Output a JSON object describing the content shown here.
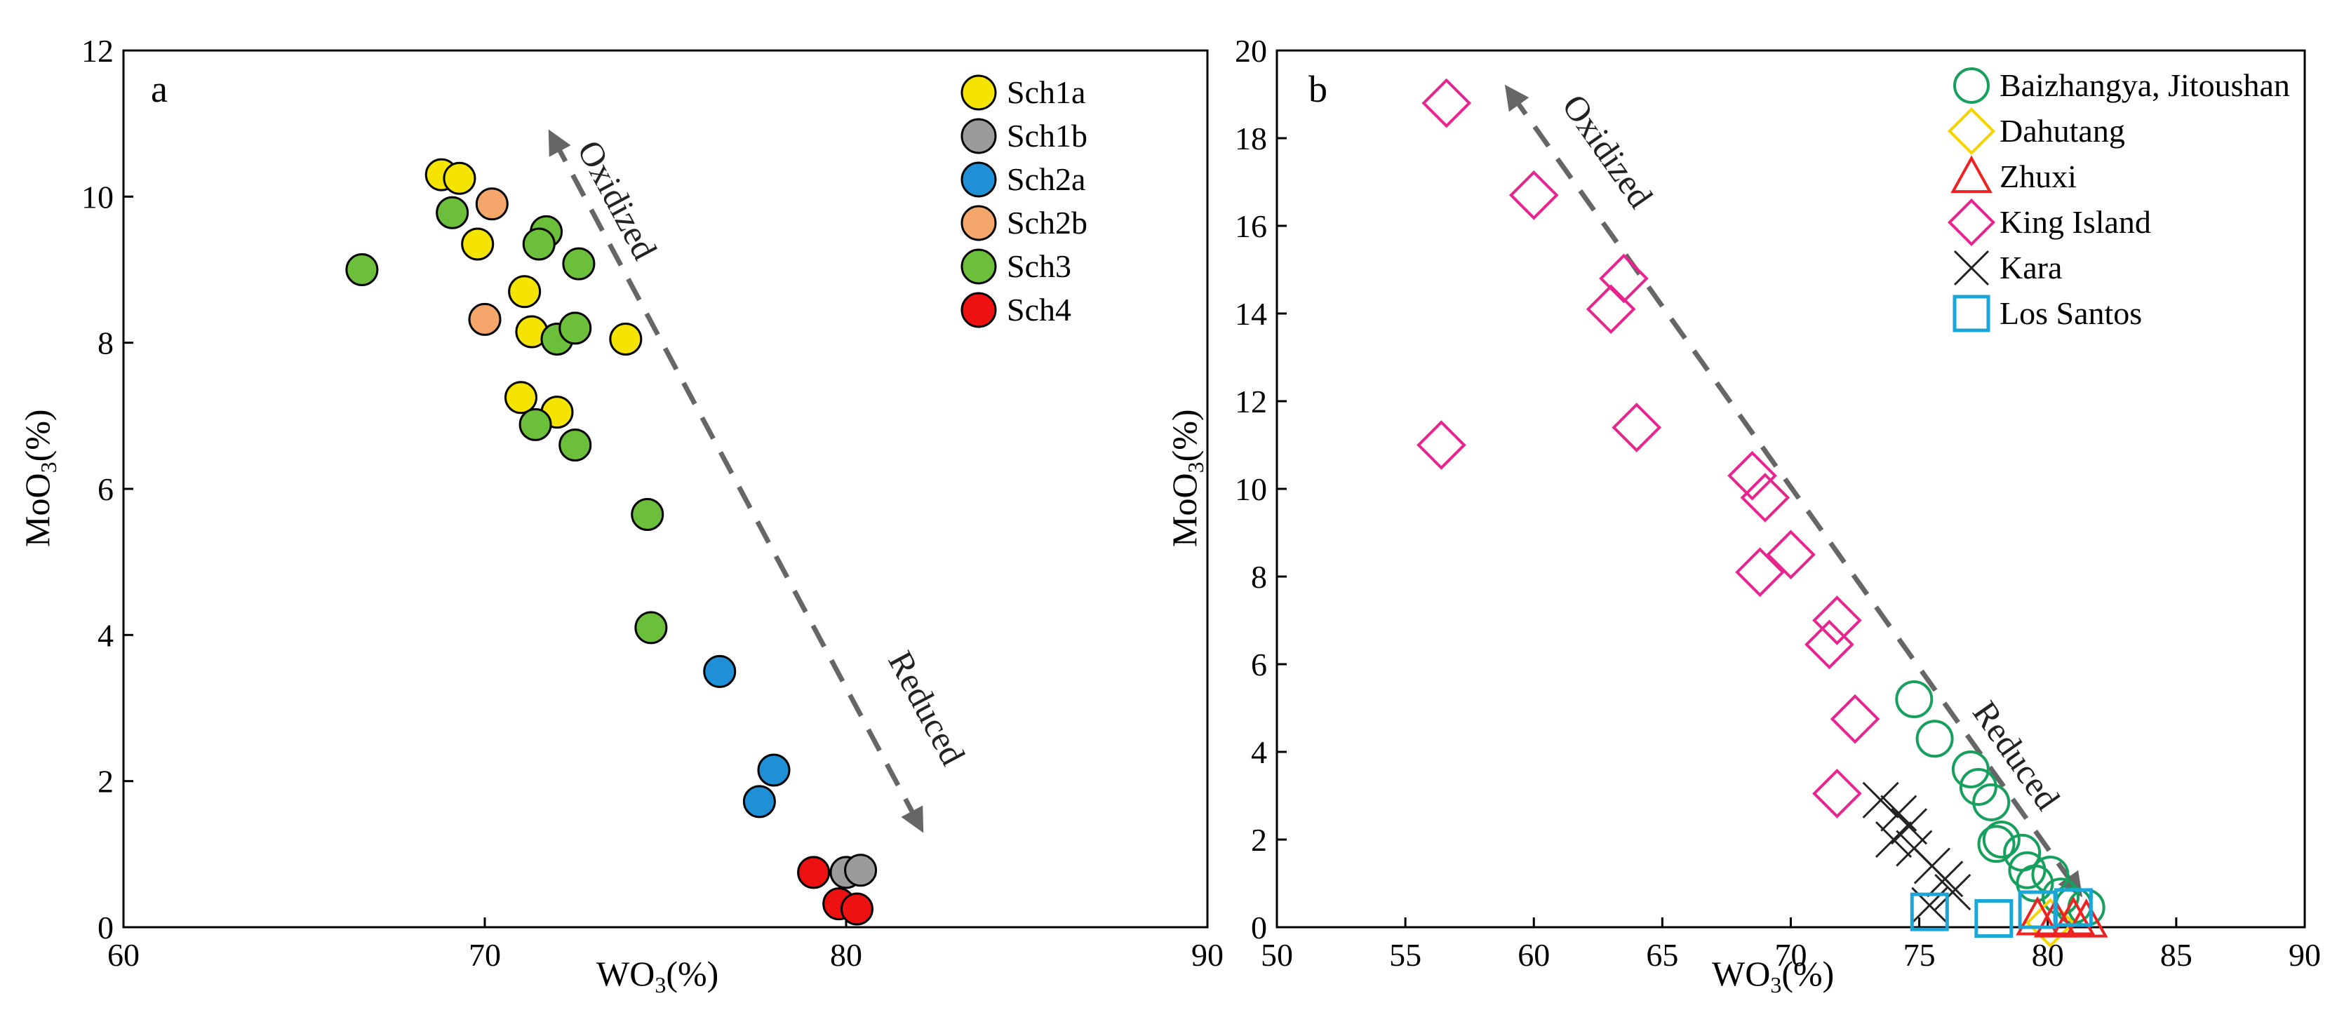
{
  "chart_data": [
    {
      "type": "scatter",
      "panel_label": "a",
      "xlabel": "WO3(%)",
      "ylabel": "MoO3(%)",
      "xlim": [
        60,
        90
      ],
      "ylim": [
        0,
        12
      ],
      "xticks": [
        "60",
        "70",
        "80",
        "90"
      ],
      "yticks": [
        "0",
        "2",
        "4",
        "6",
        "8",
        "10",
        "12"
      ],
      "legend_position": "top-right",
      "annotations": {
        "upper": "Oxidized",
        "lower": "Reduced"
      },
      "series": [
        {
          "name": "Sch1a",
          "marker": "circle",
          "fill": "#f5e400",
          "stroke": "#000000",
          "points": [
            [
              68.8,
              10.3
            ],
            [
              69.3,
              10.25
            ],
            [
              69.8,
              9.35
            ],
            [
              71.1,
              8.7
            ],
            [
              71.3,
              8.15
            ],
            [
              71.0,
              7.25
            ],
            [
              72.0,
              7.05
            ],
            [
              73.9,
              8.05
            ]
          ]
        },
        {
          "name": "Sch1b",
          "marker": "circle",
          "fill": "#9b9b9b",
          "stroke": "#000000",
          "points": [
            [
              80.0,
              0.75
            ],
            [
              80.4,
              0.78
            ]
          ]
        },
        {
          "name": "Sch2a",
          "marker": "circle",
          "fill": "#1f8fd6",
          "stroke": "#000000",
          "points": [
            [
              76.5,
              3.5
            ],
            [
              78.0,
              2.15
            ],
            [
              77.6,
              1.72
            ]
          ]
        },
        {
          "name": "Sch2b",
          "marker": "circle",
          "fill": "#f4a66b",
          "stroke": "#000000",
          "points": [
            [
              70.2,
              9.9
            ],
            [
              70.0,
              8.32
            ]
          ]
        },
        {
          "name": "Sch3",
          "marker": "circle",
          "fill": "#6bbf3b",
          "stroke": "#000000",
          "points": [
            [
              66.6,
              9.0
            ],
            [
              69.1,
              9.78
            ],
            [
              71.7,
              9.52
            ],
            [
              71.5,
              9.35
            ],
            [
              72.6,
              9.08
            ],
            [
              72.0,
              8.05
            ],
            [
              72.5,
              8.2
            ],
            [
              71.4,
              6.88
            ],
            [
              72.5,
              6.6
            ],
            [
              74.5,
              5.65
            ],
            [
              74.6,
              4.1
            ]
          ]
        },
        {
          "name": "Sch4",
          "marker": "circle",
          "fill": "#ee1111",
          "stroke": "#000000",
          "points": [
            [
              79.1,
              0.75
            ],
            [
              79.8,
              0.32
            ],
            [
              80.3,
              0.25
            ]
          ]
        }
      ]
    },
    {
      "type": "scatter",
      "panel_label": "b",
      "xlabel": "WO3(%)",
      "ylabel": "MoO3(%)",
      "xlim": [
        50,
        90
      ],
      "ylim": [
        0,
        20
      ],
      "xticks": [
        "50",
        "55",
        "60",
        "65",
        "70",
        "75",
        "80",
        "85",
        "90"
      ],
      "yticks": [
        "0",
        "2",
        "4",
        "6",
        "8",
        "10",
        "12",
        "14",
        "16",
        "18",
        "20"
      ],
      "legend_position": "top-right",
      "annotations": {
        "upper": "Oxidized",
        "lower": "Reduced"
      },
      "series": [
        {
          "name": "Baizhangya, Jitoushan",
          "marker": "circle-open",
          "stroke": "#17a05d",
          "points": [
            [
              74.8,
              5.2
            ],
            [
              75.6,
              4.3
            ],
            [
              77.0,
              3.6
            ],
            [
              77.3,
              3.2
            ],
            [
              77.8,
              2.85
            ],
            [
              78.2,
              2.0
            ],
            [
              78.0,
              1.9
            ],
            [
              79.0,
              1.7
            ],
            [
              79.2,
              1.3
            ],
            [
              79.5,
              1.0
            ],
            [
              80.1,
              1.2
            ],
            [
              80.5,
              0.7
            ],
            [
              81.0,
              0.5
            ],
            [
              81.5,
              0.45
            ]
          ]
        },
        {
          "name": "Dahutang",
          "marker": "diamond-open",
          "stroke": "#f5d400",
          "points": [
            [
              80.1,
              0.1
            ]
          ]
        },
        {
          "name": "Zhuxi",
          "marker": "triangle-open",
          "stroke": "#ee2222",
          "points": [
            [
              79.6,
              0.2
            ],
            [
              80.3,
              0.15
            ],
            [
              81.0,
              0.2
            ],
            [
              81.5,
              0.15
            ]
          ]
        },
        {
          "name": "King Island",
          "marker": "diamond-open",
          "stroke": "#e8248f",
          "points": [
            [
              56.6,
              18.8
            ],
            [
              60.0,
              16.7
            ],
            [
              63.5,
              14.8
            ],
            [
              63.0,
              14.1
            ],
            [
              56.4,
              11.0
            ],
            [
              64.0,
              11.4
            ],
            [
              68.5,
              10.3
            ],
            [
              69.0,
              9.8
            ],
            [
              68.8,
              8.1
            ],
            [
              70.0,
              8.5
            ],
            [
              71.8,
              7.0
            ],
            [
              71.5,
              6.45
            ],
            [
              72.5,
              4.75
            ],
            [
              71.8,
              3.05
            ]
          ]
        },
        {
          "name": "Kara",
          "marker": "x",
          "stroke": "#222222",
          "points": [
            [
              73.5,
              2.9
            ],
            [
              74.2,
              2.6
            ],
            [
              74.6,
              2.3
            ],
            [
              74.0,
              2.0
            ],
            [
              74.8,
              1.8
            ],
            [
              75.5,
              1.4
            ],
            [
              76.0,
              1.1
            ],
            [
              76.3,
              0.8
            ],
            [
              75.4,
              0.5
            ]
          ]
        },
        {
          "name": "Los Santos",
          "marker": "square-open",
          "stroke": "#1aa6d6",
          "points": [
            [
              75.4,
              0.35
            ],
            [
              77.9,
              0.2
            ],
            [
              79.6,
              0.4
            ],
            [
              81.0,
              0.45
            ]
          ]
        }
      ]
    }
  ]
}
